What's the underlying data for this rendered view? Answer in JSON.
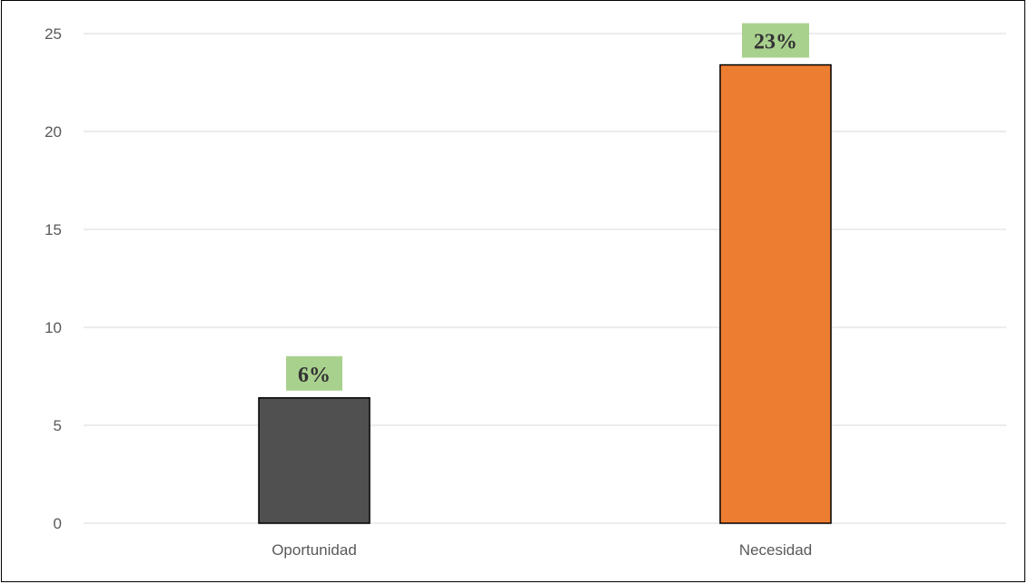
{
  "chart_data": {
    "type": "bar",
    "categories": [
      "Oportunidad",
      "Necesidad"
    ],
    "values": [
      6.4,
      23.4
    ],
    "data_labels": [
      "6%",
      "23%"
    ],
    "ylim": [
      0,
      25
    ],
    "yticks": [
      0,
      5,
      10,
      15,
      20,
      25
    ],
    "ytick_labels": [
      "0",
      "5",
      "10",
      "15",
      "20",
      "25"
    ],
    "grid": true,
    "legend": "none",
    "colors": {
      "bars": [
        "#505050",
        "#ED7D31"
      ],
      "bar_outline": "#000000",
      "data_label_background": "#A9D18E",
      "gridline": "#D9D9D9"
    }
  }
}
